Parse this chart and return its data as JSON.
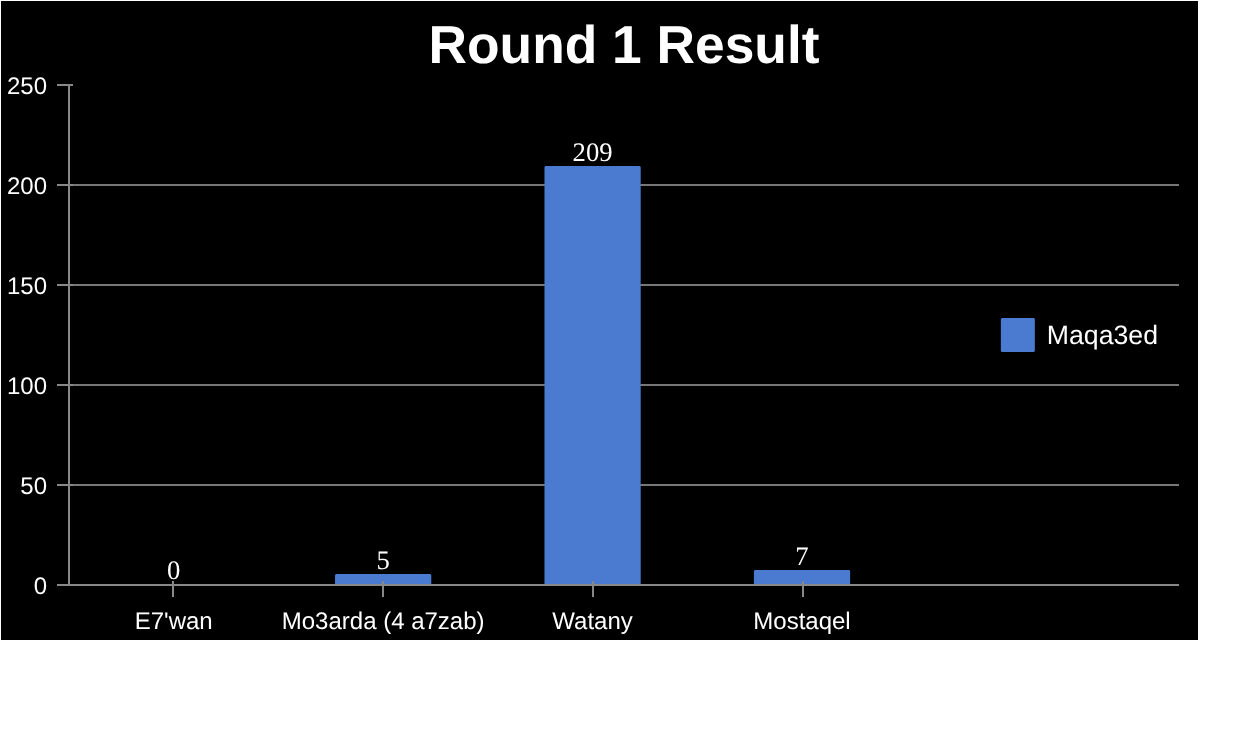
{
  "chart_data": {
    "type": "bar",
    "title": "Round 1 Result",
    "categories": [
      "E7'wan",
      "Mo3arda (4 a7zab)",
      "Watany",
      "Mostaqel"
    ],
    "series": [
      {
        "name": "Maqa3ed",
        "color": "#4a7bd0",
        "values": [
          0,
          5,
          209,
          7
        ]
      }
    ],
    "ylim": [
      0,
      250
    ],
    "yticks": [
      0,
      50,
      100,
      150,
      200,
      250
    ],
    "grid": "y",
    "legend": "right",
    "data_labels": true
  }
}
